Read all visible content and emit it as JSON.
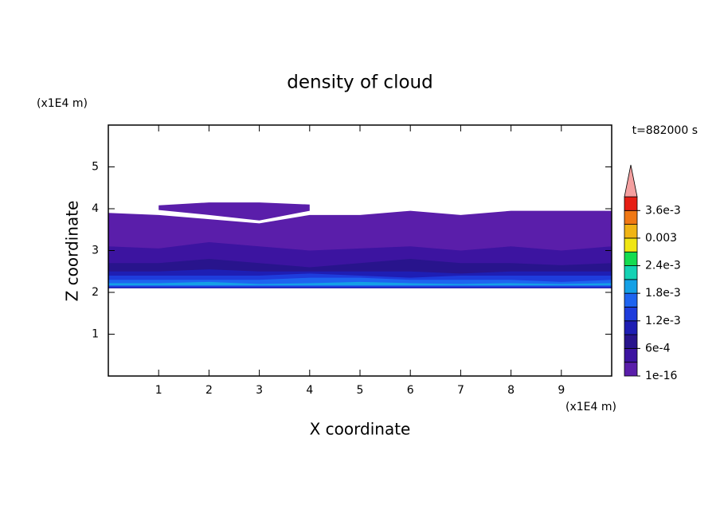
{
  "chart_data": {
    "type": "contour",
    "title": "density of cloud",
    "x_label": "X coordinate",
    "y_label": "Z coordinate",
    "x_unit": "(x1E4 m)",
    "y_unit": "(x1E4 m)",
    "time_label": "t=882000 s",
    "xlim": [
      0,
      10
    ],
    "ylim": [
      0,
      6
    ],
    "xticks": [
      1,
      2,
      3,
      4,
      5,
      6,
      7,
      8,
      9
    ],
    "yticks": [
      1,
      2,
      3,
      4,
      5
    ],
    "x": [
      0,
      1,
      2,
      3,
      4,
      5,
      6,
      7,
      8,
      9,
      10
    ],
    "layers": [
      {
        "level": 1e-16,
        "bottom": [
          2.1,
          2.1,
          2.1,
          2.1,
          2.1,
          2.1,
          2.1,
          2.1,
          2.1,
          2.1,
          2.1
        ],
        "top": [
          3.9,
          3.85,
          3.75,
          3.65,
          3.85,
          3.85,
          3.95,
          3.85,
          3.95,
          3.95,
          3.95
        ]
      },
      {
        "level": 1e-16,
        "bottom": [
          null,
          3.97,
          3.85,
          3.72,
          3.95,
          null,
          null,
          null,
          null,
          null,
          null
        ],
        "top": [
          null,
          4.08,
          4.15,
          4.15,
          4.1,
          null,
          null,
          null,
          null,
          null,
          null
        ]
      },
      {
        "level": 0.0003,
        "bottom": [
          2.1,
          2.1,
          2.1,
          2.1,
          2.1,
          2.1,
          2.1,
          2.1,
          2.1,
          2.1,
          2.1
        ],
        "top": [
          3.1,
          3.05,
          3.2,
          3.1,
          3.0,
          3.05,
          3.1,
          3.0,
          3.1,
          3.0,
          3.1
        ]
      },
      {
        "level": 0.0006,
        "bottom": [
          2.1,
          2.1,
          2.1,
          2.1,
          2.1,
          2.1,
          2.1,
          2.1,
          2.1,
          2.1,
          2.1
        ],
        "top": [
          2.7,
          2.7,
          2.8,
          2.7,
          2.6,
          2.7,
          2.8,
          2.7,
          2.7,
          2.65,
          2.7
        ]
      },
      {
        "level": 0.0009,
        "bottom": [
          2.1,
          2.1,
          2.1,
          2.1,
          2.1,
          2.1,
          2.1,
          2.1,
          2.1,
          2.1,
          2.1
        ],
        "top": [
          2.5,
          2.5,
          2.55,
          2.5,
          2.5,
          2.5,
          2.5,
          2.45,
          2.5,
          2.5,
          2.5
        ]
      },
      {
        "level": 0.0012,
        "bottom": [
          2.12,
          2.12,
          2.12,
          2.12,
          2.12,
          2.12,
          2.12,
          2.12,
          2.12,
          2.12,
          2.12
        ],
        "top": [
          2.4,
          2.4,
          2.4,
          2.4,
          2.45,
          2.4,
          2.35,
          2.4,
          2.4,
          2.4,
          2.4
        ]
      },
      {
        "level": 0.0015,
        "bottom": [
          2.15,
          2.15,
          2.15,
          2.15,
          2.15,
          2.15,
          2.15,
          2.15,
          2.15,
          2.15,
          2.15
        ],
        "top": [
          2.3,
          2.3,
          2.3,
          2.3,
          2.35,
          2.35,
          2.3,
          2.3,
          2.3,
          2.25,
          2.3
        ]
      },
      {
        "level": 0.0018,
        "bottom": [
          2.17,
          2.17,
          2.17,
          2.17,
          2.17,
          2.17,
          2.17,
          2.17,
          2.17,
          2.17,
          2.17
        ],
        "top": [
          2.22,
          2.22,
          2.25,
          2.2,
          2.22,
          2.25,
          2.22,
          2.2,
          2.22,
          2.2,
          2.22
        ]
      }
    ],
    "colorbar": {
      "bounds": [
        1e-16,
        0.0003,
        0.0006,
        0.0009,
        0.0012,
        0.0015,
        0.0018,
        0.0021,
        0.0024,
        0.0027,
        0.003,
        0.0033,
        0.0036,
        0.0039
      ],
      "colors": [
        "#5a1eaa",
        "#3c14a0",
        "#28148c",
        "#1e1eb4",
        "#1e3cdc",
        "#1e64f0",
        "#14a0e6",
        "#14d2b4",
        "#14dc50",
        "#f0e614",
        "#f0b414",
        "#f07814",
        "#e61e14"
      ],
      "extend_color": "#f4a0a0",
      "ticks": [
        {
          "value": 1e-16,
          "label": "1e-16"
        },
        {
          "value": 0.0006,
          "label": "6e-4"
        },
        {
          "value": 0.0012,
          "label": "1.2e-3"
        },
        {
          "value": 0.0018,
          "label": "1.8e-3"
        },
        {
          "value": 0.0024,
          "label": "2.4e-3"
        },
        0.003,
        {
          "value": 0.0036,
          "label": "3.6e-3"
        }
      ]
    }
  }
}
